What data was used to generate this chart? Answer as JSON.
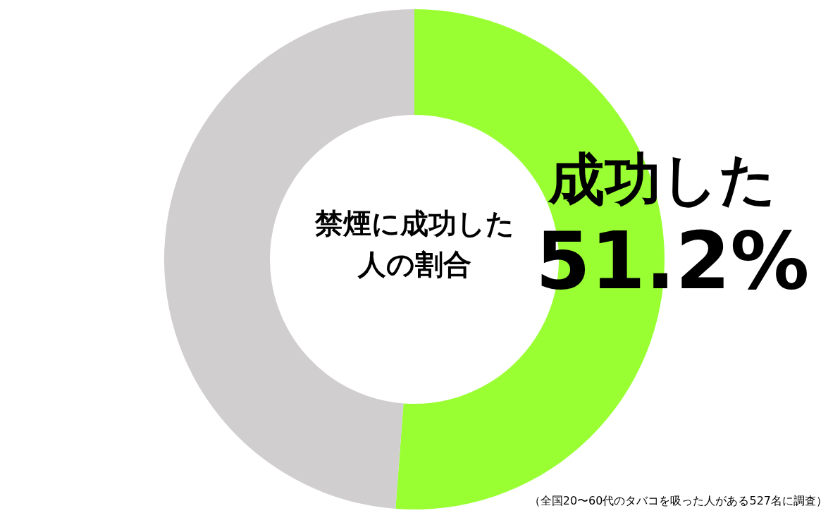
{
  "chart_data": {
    "type": "donut",
    "title": "禁煙に成功した人の割合",
    "categories": [
      "成功した",
      null
    ],
    "values": [
      51.2,
      48.8
    ],
    "colors": [
      "#99ff33",
      "#d0cece"
    ],
    "value_labels": [
      "51.2%",
      null
    ],
    "annotations": [
      "（全国20〜60代のタバコを吸った人がある527名に調査）"
    ]
  }
}
